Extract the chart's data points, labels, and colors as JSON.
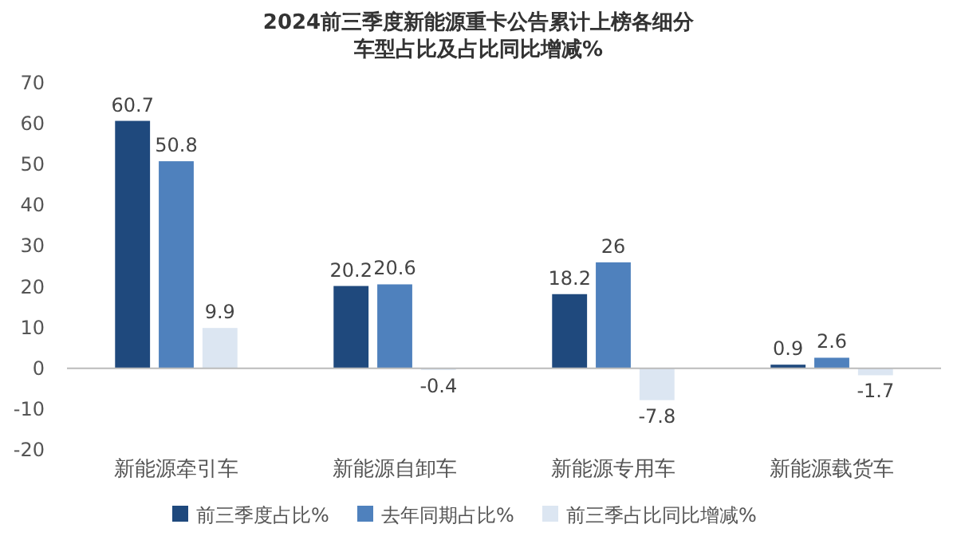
{
  "chart_data": {
    "type": "bar",
    "title": "2024前三季度新能源重卡公告累计上榜各细分车型占比及占比同比增减%",
    "categories": [
      "新能源牵引车",
      "新能源自卸车",
      "新能源专用车",
      "新能源载货车"
    ],
    "series": [
      {
        "name": "前三季度占比%",
        "color": "#1f497d",
        "values": [
          60.7,
          20.2,
          18.2,
          0.9
        ]
      },
      {
        "name": "去年同期占比%",
        "color": "#4f81bd",
        "values": [
          50.8,
          20.6,
          26,
          2.6
        ]
      },
      {
        "name": "前三季占比同比增减%",
        "color": "#dce6f2",
        "values": [
          9.9,
          -0.4,
          -7.8,
          -1.7
        ]
      }
    ],
    "ylim": [
      -20,
      70
    ],
    "yticks": [
      -20,
      -10,
      0,
      10,
      20,
      30,
      40,
      50,
      60,
      70
    ],
    "data_labels": true,
    "legend": "bottom"
  }
}
